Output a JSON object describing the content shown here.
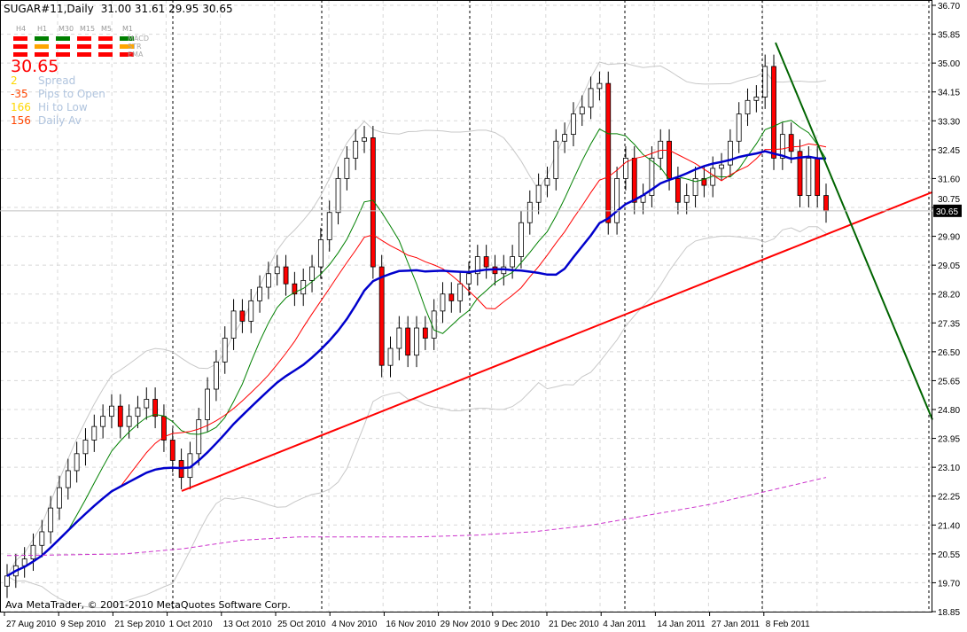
{
  "header": {
    "symbol": "SUGAR#11,Daily",
    "ohlc": "31.00 31.61 29.95 30.65"
  },
  "panel": {
    "timeframes": [
      "H4",
      "H1",
      "M30",
      "M15",
      "M5",
      "M1"
    ],
    "rows": [
      {
        "label": "MACD",
        "colors": [
          "#ff0000",
          "#008000",
          "#008000",
          "#ff0000",
          "#ff0000",
          "#008000"
        ]
      },
      {
        "label": "STR",
        "colors": [
          "#ff0000",
          "#ffa500",
          "#ff0000",
          "#ff0000",
          "#ff0000",
          "#ffa500"
        ]
      },
      {
        "label": "EMA",
        "colors": [
          "#ff0000",
          "#ff0000",
          "#ff0000",
          "#ff0000",
          "#ff0000",
          "#ff0000"
        ]
      }
    ],
    "price": "30.65",
    "stats": [
      {
        "value": "2",
        "label": "Spread",
        "color": "#ffd700"
      },
      {
        "value": "-35",
        "label": "Pips to Open",
        "color": "#ff4500"
      },
      {
        "value": "166",
        "label": "Hi to Low",
        "color": "#ffd700"
      },
      {
        "value": "156",
        "label": "Daily Av",
        "color": "#ff4500"
      }
    ]
  },
  "footer": {
    "copyright": "Ava MetaTrader, © 2001-2010 MetaQuotes Software Corp."
  },
  "chart_data": {
    "type": "candlestick",
    "ylim": [
      18.85,
      36.7
    ],
    "y_ticks": [
      "36.70",
      "35.85",
      "35.00",
      "34.15",
      "33.30",
      "32.45",
      "31.60",
      "30.75",
      "29.90",
      "29.05",
      "28.20",
      "27.35",
      "26.50",
      "25.65",
      "24.80",
      "23.95",
      "23.10",
      "22.25",
      "21.40",
      "20.55",
      "19.70",
      "18.85"
    ],
    "x_ticks": [
      "27 Aug 2010",
      "9 Sep 2010",
      "21 Sep 2010",
      "1 Oct 2010",
      "13 Oct 2010",
      "25 Oct 2010",
      "4 Nov 2010",
      "16 Nov 2010",
      "29 Nov 2010",
      "9 Dec 2010",
      "21 Dec 2010",
      "4 Jan 2011",
      "14 Jan 2011",
      "27 Jan 2011",
      "8 Feb 2011"
    ],
    "month_separators": [
      "1 Oct 2010",
      "1 Nov 2010",
      "1 Dec 2010",
      "3 Jan 2011",
      "1 Feb 2011"
    ],
    "current_price": "30.65",
    "close": [
      19.9,
      20.2,
      20.4,
      20.8,
      21.2,
      21.9,
      22.5,
      23.0,
      23.5,
      23.9,
      24.3,
      24.6,
      24.9,
      24.3,
      24.6,
      24.85,
      25.1,
      24.6,
      23.9,
      23.3,
      22.8,
      23.5,
      24.5,
      25.4,
      26.2,
      26.9,
      27.7,
      27.4,
      28.0,
      28.4,
      28.8,
      29.0,
      28.5,
      28.2,
      28.6,
      29.0,
      29.8,
      30.6,
      31.6,
      32.2,
      32.7,
      32.8,
      29.0,
      26.1,
      26.6,
      27.2,
      26.4,
      27.2,
      26.9,
      27.7,
      28.2,
      28.0,
      28.5,
      28.8,
      29.3,
      29.0,
      28.8,
      29.0,
      29.3,
      30.3,
      30.9,
      31.4,
      31.6,
      32.7,
      32.9,
      33.5,
      33.7,
      34.25,
      34.4,
      30.3,
      31.6,
      32.2,
      30.9,
      31.1,
      32.2,
      32.7,
      31.6,
      30.9,
      31.1,
      31.6,
      31.4,
      31.9,
      32.0,
      32.7,
      33.5,
      33.9,
      34.0,
      34.9,
      32.2,
      32.9,
      32.4,
      31.1,
      32.2,
      31.1,
      30.65
    ],
    "long_ma": [
      20.5,
      20.52,
      20.55,
      20.7,
      20.95,
      21.05,
      21.05,
      21.05,
      21.1,
      21.2,
      21.4,
      21.7,
      22.0,
      22.4,
      22.8
    ],
    "trendlines": [
      {
        "color": "#ff0000",
        "from": [
          "1 Oct 2010",
          22.4
        ],
        "to": [
          "right edge",
          31.2
        ]
      },
      {
        "color": "#006400",
        "from": [
          "31 Jan 2011",
          35.6
        ],
        "to": [
          "right edge",
          24.5
        ]
      }
    ],
    "indicators": {
      "fast_ma_color": "#008000",
      "mid_ma_color": "#ff0000",
      "slow_ma_color": "#0000cc",
      "bands_color": "#c8c8c8",
      "long_ma_color": "#cc33cc"
    }
  }
}
